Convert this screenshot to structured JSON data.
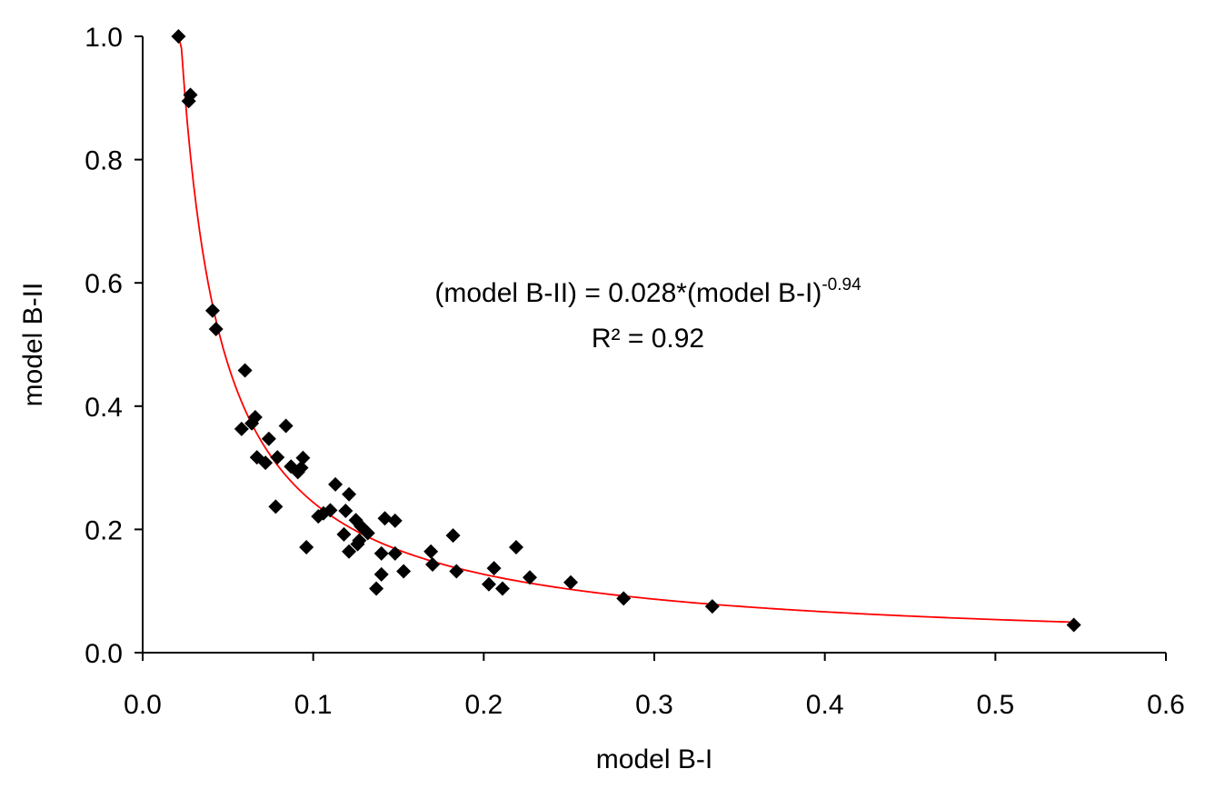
{
  "chart_data": {
    "type": "scatter",
    "title": "",
    "xlabel": "model B-I",
    "ylabel": "model B-II",
    "xlim": [
      0.0,
      0.6
    ],
    "ylim": [
      0.0,
      1.0
    ],
    "x_ticks": [
      "0.0",
      "0.1",
      "0.2",
      "0.3",
      "0.4",
      "0.5",
      "0.6"
    ],
    "y_ticks": [
      "0.0",
      "0.2",
      "0.4",
      "0.6",
      "0.8",
      "1.0"
    ],
    "grid": false,
    "legend": "none",
    "series": [
      {
        "name": "model B-II vs model B-I",
        "marker": "diamond",
        "color": "#000000",
        "points": [
          [
            0.021,
            1.0
          ],
          [
            0.028,
            0.905
          ],
          [
            0.027,
            0.895
          ],
          [
            0.041,
            0.555
          ],
          [
            0.043,
            0.525
          ],
          [
            0.06,
            0.458
          ],
          [
            0.058,
            0.363
          ],
          [
            0.066,
            0.382
          ],
          [
            0.064,
            0.372
          ],
          [
            0.084,
            0.368
          ],
          [
            0.074,
            0.347
          ],
          [
            0.067,
            0.317
          ],
          [
            0.072,
            0.308
          ],
          [
            0.079,
            0.317
          ],
          [
            0.087,
            0.302
          ],
          [
            0.094,
            0.316
          ],
          [
            0.091,
            0.293
          ],
          [
            0.093,
            0.3
          ],
          [
            0.078,
            0.237
          ],
          [
            0.113,
            0.273
          ],
          [
            0.121,
            0.257
          ],
          [
            0.103,
            0.221
          ],
          [
            0.106,
            0.226
          ],
          [
            0.11,
            0.231
          ],
          [
            0.119,
            0.23
          ],
          [
            0.125,
            0.215
          ],
          [
            0.128,
            0.205
          ],
          [
            0.132,
            0.194
          ],
          [
            0.118,
            0.192
          ],
          [
            0.127,
            0.182
          ],
          [
            0.126,
            0.176
          ],
          [
            0.096,
            0.171
          ],
          [
            0.121,
            0.164
          ],
          [
            0.142,
            0.218
          ],
          [
            0.148,
            0.214
          ],
          [
            0.14,
            0.161
          ],
          [
            0.148,
            0.161
          ],
          [
            0.14,
            0.127
          ],
          [
            0.153,
            0.132
          ],
          [
            0.137,
            0.104
          ],
          [
            0.169,
            0.164
          ],
          [
            0.17,
            0.143
          ],
          [
            0.182,
            0.19
          ],
          [
            0.184,
            0.132
          ],
          [
            0.219,
            0.171
          ],
          [
            0.206,
            0.137
          ],
          [
            0.203,
            0.111
          ],
          [
            0.211,
            0.104
          ],
          [
            0.227,
            0.122
          ],
          [
            0.251,
            0.114
          ],
          [
            0.282,
            0.088
          ],
          [
            0.334,
            0.075
          ],
          [
            0.546,
            0.045
          ]
        ]
      }
    ],
    "trendline": {
      "type": "power",
      "coefficient": 0.028,
      "exponent": -0.94,
      "x_range": [
        0.021,
        0.546
      ],
      "color": "#ff0000"
    },
    "annotations": {
      "equation_main": "(model B-II) = 0.028*(model B-I)",
      "equation_exponent": "-0.94",
      "r_squared": "R² = 0.92"
    }
  }
}
